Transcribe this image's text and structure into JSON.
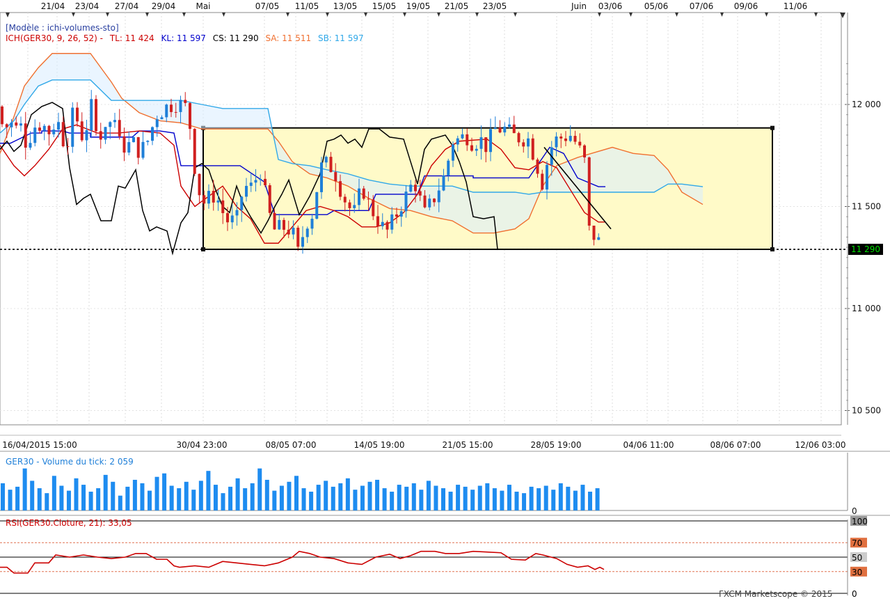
{
  "template_label": "[Modèle : ichi-volumes-sto]",
  "ichimoku": {
    "prefix": "ICH(GER30, 9, 26, 52) -",
    "tl": "TL: 11 424",
    "kl": "KL: 11 597",
    "cs": "CS: 11 290",
    "sa": "SA: 11 511",
    "sb": "SB: 11 597"
  },
  "colors": {
    "tenkan": "#cc0000",
    "kijun": "#0000cc",
    "chikou": "#000000",
    "senkou_a": "#f07030",
    "senkou_b": "#30a8e8",
    "bull": "#1e7fd8",
    "bear": "#d02020",
    "volume": "#1e8cf0",
    "rsi": "#cc0000",
    "box_fill": "#fffac8",
    "current_price_bg": "#000000",
    "current_price_fg": "#00e000"
  },
  "top_dates": [
    "21/04",
    "23/04",
    "27/04",
    "29/04",
    "Mai",
    "07/05",
    "11/05",
    "13/05",
    "15/05",
    "19/05",
    "21/05",
    "23/05",
    "Juin",
    "03/06",
    "05/06",
    "07/06",
    "09/06",
    "11/06"
  ],
  "time_labels": [
    "16/04/2015 15:00",
    "30/04 23:00",
    "08/05 07:00",
    "14/05 19:00",
    "21/05 15:00",
    "28/05 19:00",
    "04/06 11:00",
    "08/06 07:00",
    "12/06 03:00"
  ],
  "price_labels": [
    "12 000",
    "11 500",
    "11 000",
    "10 500"
  ],
  "current_price_label": "11 290",
  "volume_label": "GER30 - Volume du tick: 2 059",
  "volume_zero": "0",
  "rsi_label": "RSI(GER30.Cloture, 21): 33,05",
  "rsi_levels": [
    "100",
    "70",
    "50",
    "30",
    "0"
  ],
  "footer": "FXCM Marketscope © 2015",
  "chart_data": [
    {
      "type": "candlestick",
      "title": "GER30",
      "yticks": [
        12000,
        11500,
        11000,
        10500
      ],
      "ylim": [
        10410,
        12280
      ],
      "current_price": 11290,
      "box": {
        "price_high": 11885,
        "price_low": 11290
      },
      "ichimoku_last": {
        "TL": 11424,
        "KL": 11597,
        "CS": 11290,
        "SA": 11511,
        "SB": 11597
      },
      "candles_ohlc_sample": [
        [
          11990,
          12010,
          11870,
          11900
        ],
        [
          11900,
          11930,
          11680,
          11700
        ],
        [
          11700,
          11900,
          11650,
          11860
        ],
        [
          11860,
          12060,
          11840,
          12030
        ],
        [
          12030,
          12070,
          11890,
          11910
        ],
        [
          11910,
          11930,
          11830,
          11870
        ],
        [
          11870,
          12050,
          11820,
          11900
        ],
        [
          11900,
          12060,
          11860,
          11990
        ],
        [
          11990,
          12020,
          11720,
          11750
        ],
        [
          11750,
          11890,
          11700,
          11860
        ],
        [
          11860,
          11880,
          11620,
          11650
        ],
        [
          11650,
          11660,
          11330,
          11360
        ],
        [
          11360,
          11560,
          11330,
          11480
        ],
        [
          11480,
          11720,
          11460,
          11690
        ],
        [
          11690,
          11710,
          11310,
          11350
        ],
        [
          11350,
          11420,
          11230,
          11260
        ],
        [
          11260,
          11430,
          11200,
          11400
        ],
        [
          11400,
          11750,
          11380,
          11710
        ],
        [
          11710,
          11720,
          11560,
          11590
        ],
        [
          11590,
          11650,
          11380,
          11410
        ],
        [
          11410,
          11610,
          11360,
          11580
        ],
        [
          11580,
          11600,
          11300,
          11320
        ],
        [
          11320,
          11420,
          11210,
          11400
        ],
        [
          11400,
          11620,
          11380,
          11590
        ],
        [
          11590,
          11620,
          11430,
          11450
        ],
        [
          11450,
          11560,
          11420,
          11520
        ],
        [
          11520,
          11580,
          11380,
          11410
        ],
        [
          11410,
          11860,
          11380,
          11820
        ],
        [
          11820,
          11880,
          11760,
          11800
        ],
        [
          11800,
          11860,
          11700,
          11720
        ],
        [
          11720,
          11890,
          11710,
          11860
        ],
        [
          11860,
          11880,
          11780,
          11840
        ],
        [
          11840,
          11880,
          11810,
          11820
        ],
        [
          11820,
          11930,
          11660,
          11690
        ],
        [
          11690,
          11700,
          11580,
          11610
        ],
        [
          11610,
          11790,
          11590,
          11770
        ],
        [
          11770,
          11790,
          11620,
          11640
        ],
        [
          11640,
          11680,
          11500,
          11530
        ],
        [
          11530,
          11560,
          11380,
          11410
        ],
        [
          11410,
          11470,
          11320,
          11350
        ],
        [
          11350,
          11460,
          11330,
          11440
        ],
        [
          11440,
          11450,
          11290,
          11300
        ]
      ],
      "volume_ylim": [
        0,
        100
      ],
      "volume_values": [
        55,
        42,
        48,
        85,
        60,
        45,
        35,
        70,
        50,
        40,
        65,
        52,
        38,
        45,
        72,
        58,
        30,
        48,
        62,
        55,
        40,
        68,
        75,
        50,
        45,
        58,
        42,
        60,
        80,
        52,
        35,
        48,
        65,
        45,
        55,
        85,
        62,
        40,
        50,
        58,
        70,
        45,
        38,
        52,
        60,
        48,
        55,
        65,
        42,
        50,
        58,
        62,
        45,
        38,
        52,
        48,
        55,
        42,
        60,
        50,
        45,
        38,
        52,
        48,
        42,
        50,
        55,
        45,
        40,
        52,
        38,
        35,
        48,
        45,
        50,
        42,
        55,
        48,
        40,
        52,
        38,
        45
      ],
      "rsi_ylim": [
        0,
        100
      ],
      "rsi_levels": [
        70,
        50,
        30
      ]
    }
  ]
}
